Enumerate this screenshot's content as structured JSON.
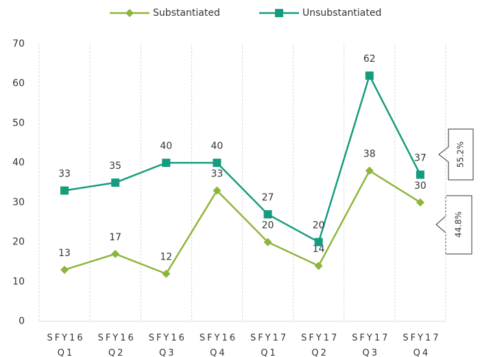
{
  "chart_data": {
    "type": "line",
    "categories": [
      "SFY16 Q1",
      "SFY16 Q2",
      "SFY16 Q3",
      "SFY16 Q4",
      "SFY17 Q1",
      "SFY17 Q2",
      "SFY17 Q3",
      "SFY17 Q4"
    ],
    "series": [
      {
        "name": "Substantiated",
        "color": "#8db53c",
        "marker": "diamond",
        "values": [
          13,
          17,
          12,
          33,
          20,
          14,
          38,
          30
        ]
      },
      {
        "name": "Unsubstantiated",
        "color": "#159b7d",
        "marker": "square",
        "values": [
          33,
          35,
          40,
          40,
          27,
          20,
          62,
          37
        ]
      }
    ],
    "ylim": [
      0,
      70
    ],
    "yticks": [
      0,
      10,
      20,
      30,
      40,
      50,
      60,
      70
    ],
    "grid": true,
    "legend": "top",
    "annotations": [
      "55.2%",
      "44.8%"
    ]
  }
}
